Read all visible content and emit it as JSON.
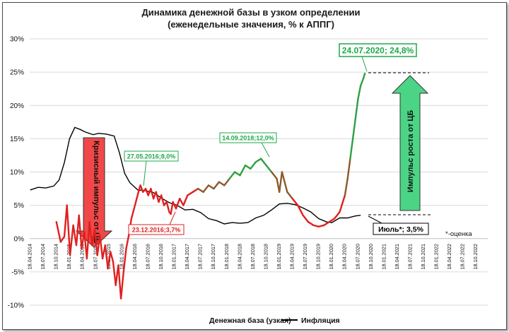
{
  "chart_data": {
    "type": "line",
    "title": "Динамика денежной базы в узком определении",
    "subtitle": "(еженедельные значения, % к АППГ)",
    "yticks": [
      "30%",
      "25%",
      "20%",
      "15%",
      "10%",
      "5%",
      "0%",
      "-5%",
      "-10%"
    ],
    "ylim": [
      -10,
      30
    ],
    "xticks": [
      "18.04.2014",
      "18.07.2014",
      "18.10.2014",
      "18.01.2015",
      "18.04.2015",
      "18.07.2015",
      "18.10.2015",
      "18.01.2016",
      "18.04.2016",
      "18.07.2016",
      "18.10.2016",
      "18.01.2017",
      "18.04.2017",
      "18.07.2017",
      "18.10.2017",
      "18.01.2018",
      "18.04.2018",
      "18.07.2018",
      "18.10.2018",
      "18.01.2019",
      "18.04.2019",
      "18.07.2019",
      "18.10.2019",
      "18.01.2020",
      "18.04.2020",
      "18.07.2020",
      "18.10.2020",
      "18.01.2021",
      "18.04.2021",
      "18.07.2021",
      "18.10.2021",
      "18.01.2022",
      "18.04.2022",
      "18.07.2022",
      "18.10.2022"
    ],
    "grid": "horizontal",
    "legend_position": "bottom",
    "series": [
      {
        "name": "Денежная база (узкая)",
        "color": "#e02020",
        "values": [
          [
            2014.8,
            2.5
          ],
          [
            2014.88,
            -0.5
          ],
          [
            2014.95,
            0.3
          ],
          [
            2015.0,
            5.0
          ],
          [
            2015.06,
            -2.5
          ],
          [
            2015.12,
            2.0
          ],
          [
            2015.18,
            -1.0
          ],
          [
            2015.23,
            3.5
          ],
          [
            2015.28,
            -1.5
          ],
          [
            2015.33,
            1.0
          ],
          [
            2015.38,
            -3.0
          ],
          [
            2015.43,
            2.5
          ],
          [
            2015.48,
            -1.0
          ],
          [
            2015.53,
            1.5
          ],
          [
            2015.58,
            -2.5
          ],
          [
            2015.63,
            0.5
          ],
          [
            2015.68,
            -3.0
          ],
          [
            2015.73,
            -1.0
          ],
          [
            2015.78,
            -4.5
          ],
          [
            2015.83,
            -2.0
          ],
          [
            2015.88,
            -3.5
          ],
          [
            2015.93,
            -7.0
          ],
          [
            2015.98,
            -4.0
          ],
          [
            2016.03,
            -9.0
          ],
          [
            2016.08,
            -5.0
          ],
          [
            2016.13,
            -1.5
          ],
          [
            2016.18,
            0.5
          ],
          [
            2016.23,
            3.0
          ],
          [
            2016.28,
            4.5
          ],
          [
            2016.33,
            6.0
          ],
          [
            2016.38,
            7.5
          ],
          [
            2016.4,
            8.0
          ],
          [
            2016.45,
            7.0
          ],
          [
            2016.5,
            7.5
          ],
          [
            2016.55,
            6.5
          ],
          [
            2016.6,
            7.5
          ],
          [
            2016.65,
            6.0
          ],
          [
            2016.7,
            7.0
          ],
          [
            2016.75,
            5.5
          ],
          [
            2016.8,
            6.5
          ],
          [
            2016.85,
            5.0
          ],
          [
            2016.9,
            5.5
          ],
          [
            2016.95,
            4.0
          ],
          [
            2016.98,
            3.7
          ],
          [
            2017.02,
            5.5
          ],
          [
            2017.08,
            4.5
          ],
          [
            2017.15,
            6.0
          ],
          [
            2017.22,
            5.0
          ],
          [
            2017.3,
            6.5
          ],
          [
            2017.4,
            7.0
          ],
          [
            2017.5,
            7.5
          ],
          [
            2017.6,
            7.0
          ],
          [
            2017.7,
            8.0
          ],
          [
            2017.8,
            7.5
          ],
          [
            2017.9,
            8.5
          ],
          [
            2018.0,
            8.0
          ],
          [
            2018.1,
            9.0
          ],
          [
            2018.2,
            10.0
          ],
          [
            2018.3,
            9.5
          ],
          [
            2018.4,
            11.0
          ],
          [
            2018.5,
            10.5
          ],
          [
            2018.6,
            11.5
          ],
          [
            2018.7,
            12.0
          ],
          [
            2018.8,
            11.0
          ],
          [
            2018.9,
            10.0
          ],
          [
            2019.0,
            9.0
          ],
          [
            2019.05,
            7.0
          ],
          [
            2019.1,
            10.0
          ],
          [
            2019.15,
            8.5
          ],
          [
            2019.2,
            7.0
          ],
          [
            2019.3,
            6.0
          ],
          [
            2019.4,
            5.0
          ],
          [
            2019.5,
            3.5
          ],
          [
            2019.6,
            2.5
          ],
          [
            2019.7,
            2.0
          ],
          [
            2019.8,
            1.8
          ],
          [
            2019.9,
            2.0
          ],
          [
            2020.0,
            2.5
          ],
          [
            2020.1,
            3.0
          ],
          [
            2020.2,
            4.0
          ],
          [
            2020.3,
            6.5
          ],
          [
            2020.35,
            9.0
          ],
          [
            2020.4,
            12.0
          ],
          [
            2020.45,
            15.0
          ],
          [
            2020.5,
            18.0
          ],
          [
            2020.55,
            21.0
          ],
          [
            2020.6,
            23.0
          ],
          [
            2020.65,
            24.0
          ],
          [
            2020.68,
            24.8
          ]
        ]
      },
      {
        "name": "Инфляция",
        "color": "#000000",
        "values": [
          [
            2014.3,
            7.3
          ],
          [
            2014.45,
            7.7
          ],
          [
            2014.6,
            7.6
          ],
          [
            2014.75,
            7.9
          ],
          [
            2014.85,
            8.8
          ],
          [
            2014.95,
            11.4
          ],
          [
            2015.05,
            15.0
          ],
          [
            2015.15,
            16.7
          ],
          [
            2015.25,
            16.4
          ],
          [
            2015.35,
            16.0
          ],
          [
            2015.5,
            15.6
          ],
          [
            2015.6,
            15.8
          ],
          [
            2015.75,
            15.7
          ],
          [
            2015.9,
            15.4
          ],
          [
            2016.0,
            12.9
          ],
          [
            2016.1,
            9.8
          ],
          [
            2016.2,
            8.4
          ],
          [
            2016.35,
            7.3
          ],
          [
            2016.5,
            7.2
          ],
          [
            2016.65,
            6.9
          ],
          [
            2016.8,
            6.1
          ],
          [
            2016.95,
            5.4
          ],
          [
            2017.1,
            5.0
          ],
          [
            2017.25,
            4.3
          ],
          [
            2017.4,
            4.4
          ],
          [
            2017.55,
            3.9
          ],
          [
            2017.7,
            3.0
          ],
          [
            2017.85,
            2.7
          ],
          [
            2018.0,
            2.2
          ],
          [
            2018.15,
            2.4
          ],
          [
            2018.3,
            2.3
          ],
          [
            2018.45,
            2.4
          ],
          [
            2018.6,
            3.1
          ],
          [
            2018.75,
            3.5
          ],
          [
            2018.9,
            4.3
          ],
          [
            2019.05,
            5.2
          ],
          [
            2019.2,
            5.3
          ],
          [
            2019.35,
            5.1
          ],
          [
            2019.5,
            4.6
          ],
          [
            2019.65,
            4.0
          ],
          [
            2019.8,
            3.0
          ],
          [
            2019.95,
            2.5
          ],
          [
            2020.05,
            2.4
          ],
          [
            2020.2,
            3.1
          ],
          [
            2020.35,
            3.1
          ],
          [
            2020.5,
            3.4
          ],
          [
            2020.6,
            3.5
          ]
        ]
      }
    ],
    "annotations": {
      "peak_2016": "27.05.2016;8,0%",
      "low_2016": "23.12.2016;3,7%",
      "peak_2018": "14.09.2018;12,0%",
      "peak_2020": "24.07.2020; 24,8%",
      "inflation_july": "Июль*; 3,5%",
      "estimate_note": "*-оценка",
      "crisis_label": "Кризисный импульс от ЦБ",
      "growth_label": "Импульс роста от ЦБ"
    },
    "colors": {
      "money_red": "#e02020",
      "money_olive": "#8b5a2b",
      "money_green": "#2ea043",
      "annotation_green": "#1fa84a",
      "annotation_red": "#e02020",
      "arrow_red": "#f04848",
      "arrow_green": "#4cd486",
      "grid": "#d9d9d9"
    }
  }
}
